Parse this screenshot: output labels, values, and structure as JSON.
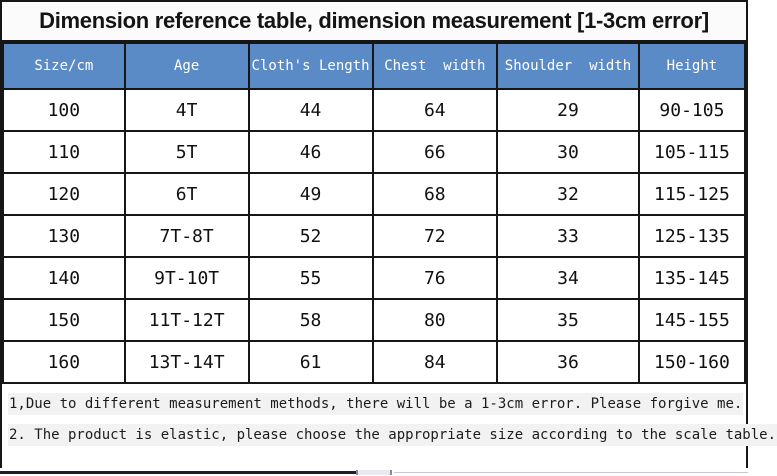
{
  "title": "Dimension reference table, dimension measurement [1-3cm error]",
  "table": {
    "headers": [
      "Size/cm",
      "Age",
      "Cloth's Length",
      "Chest  width",
      "Shoulder  width",
      "Height"
    ],
    "column_names": [
      "size-cm",
      "age",
      "cloths-length",
      "chest-width",
      "shoulder-width",
      "height"
    ],
    "rows": [
      [
        "100",
        "4T",
        "44",
        "64",
        "29",
        "90-105"
      ],
      [
        "110",
        "5T",
        "46",
        "66",
        "30",
        "105-115"
      ],
      [
        "120",
        "6T",
        "49",
        "68",
        "32",
        "115-125"
      ],
      [
        "130",
        "7T-8T",
        "52",
        "72",
        "33",
        "125-135"
      ],
      [
        "140",
        "9T-10T",
        "55",
        "76",
        "34",
        "135-145"
      ],
      [
        "150",
        "11T-12T",
        "58",
        "80",
        "35",
        "145-155"
      ],
      [
        "160",
        "13T-14T",
        "61",
        "84",
        "36",
        "150-160"
      ]
    ]
  },
  "notes": [
    "1,Due to different measurement methods, there will be a 1-3cm error. Please forgive me.",
    "2. The product is elastic, please choose the appropriate size according to the scale table."
  ],
  "colors": {
    "header_bg": "#5a8bc7",
    "header_text": "#ffffff",
    "border": "#161616",
    "note_highlight": "#f2f2f2"
  }
}
